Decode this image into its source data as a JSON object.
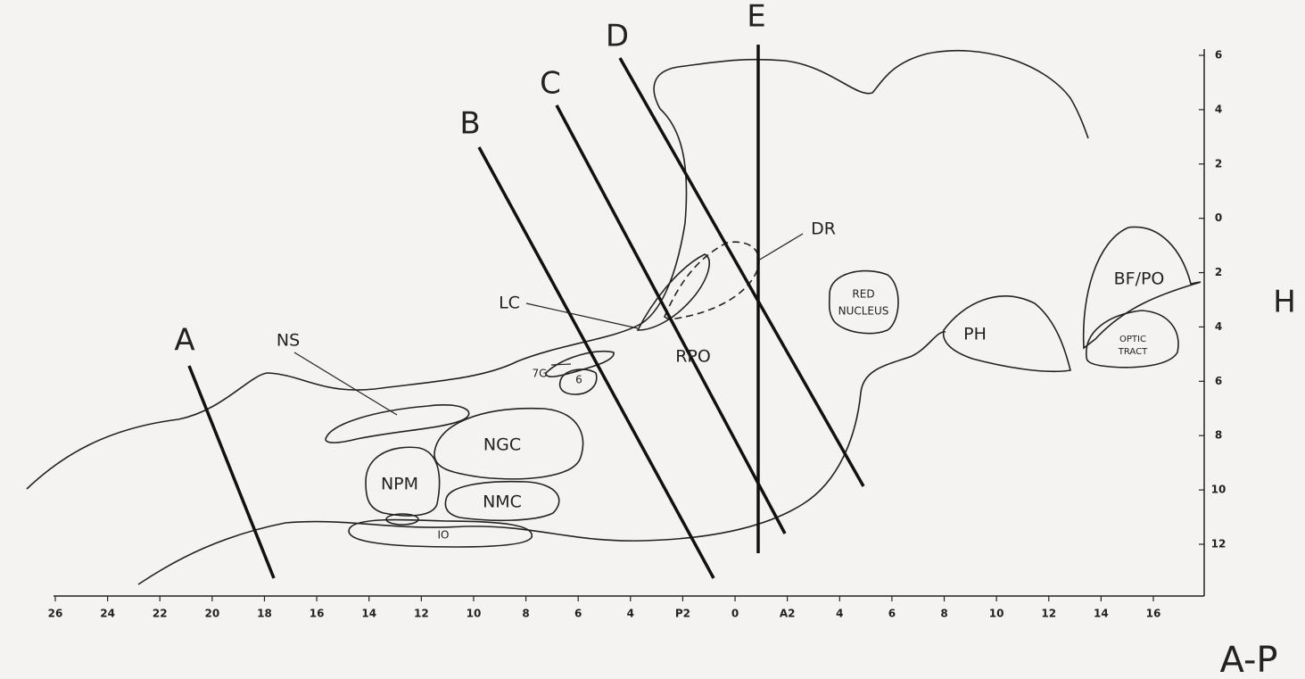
{
  "planes": [
    "A",
    "B",
    "C",
    "D",
    "E",
    "H"
  ],
  "axis_title": "A-P",
  "regions": {
    "ns": "NS",
    "lc": "LC",
    "g7": "7G",
    "n6": "6",
    "ngc": "NGC",
    "npm": "NPM",
    "nmc": "NMC",
    "io": "IO",
    "rpo": "RPO",
    "dr": "DR",
    "red_nucleus": [
      "RED",
      "NUCLEUS"
    ],
    "ph": "PH",
    "bfpo": "BF/PO",
    "optic_tract": [
      "OPTIC",
      "TRACT"
    ]
  },
  "ap_ticks": [
    "26",
    "24",
    "22",
    "20",
    "18",
    "16",
    "14",
    "12",
    "10",
    "8",
    "6",
    "4",
    "P2",
    "0",
    "A2",
    "4",
    "6",
    "8",
    "10",
    "12",
    "14",
    "16"
  ],
  "vertical_ticks": [
    "6",
    "4",
    "2",
    "0",
    "2",
    "4",
    "6",
    "8",
    "10",
    "12"
  ]
}
